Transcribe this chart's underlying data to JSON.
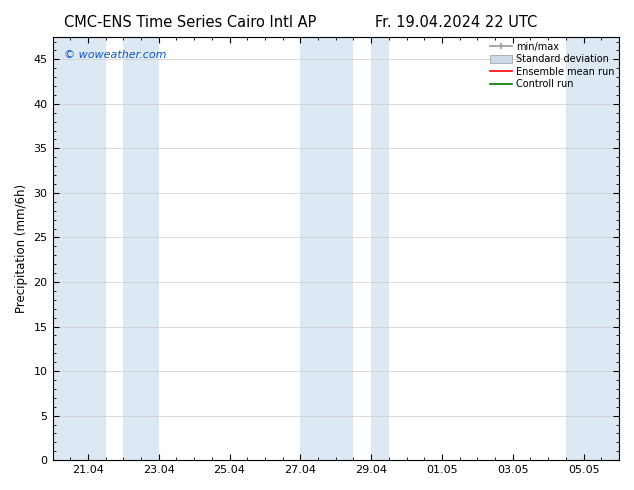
{
  "title_left": "CMC-ENS Time Series Cairo Intl AP",
  "title_right": "Fr. 19.04.2024 22 UTC",
  "ylabel": "Precipitation (mm/6h)",
  "watermark": "© woweather.com",
  "ylim": [
    0,
    47.5
  ],
  "yticks": [
    0,
    5,
    10,
    15,
    20,
    25,
    30,
    35,
    40,
    45
  ],
  "xtick_labels": [
    "21.04",
    "23.04",
    "25.04",
    "27.04",
    "29.04",
    "01.05",
    "03.05",
    "05.05"
  ],
  "xtick_positions": [
    1,
    3,
    5,
    7,
    9,
    11,
    13,
    15
  ],
  "xmin": 0,
  "xmax": 16,
  "blue_bands": [
    [
      0,
      1.5
    ],
    [
      2.0,
      3.0
    ],
    [
      7.0,
      8.5
    ],
    [
      9.0,
      9.5
    ],
    [
      14.5,
      16
    ]
  ],
  "background_color": "#ffffff",
  "band_color": "#dce9f5",
  "grid_color": "#cccccc",
  "title_fontsize": 10.5,
  "label_fontsize": 8.5,
  "tick_fontsize": 8,
  "legend_entries": [
    "min/max",
    "Standard deviation",
    "Ensemble mean run",
    "Controll run"
  ],
  "legend_colors_line": [
    "#aaaaaa",
    "#bbbbcc",
    "#ff0000",
    "#007700"
  ]
}
